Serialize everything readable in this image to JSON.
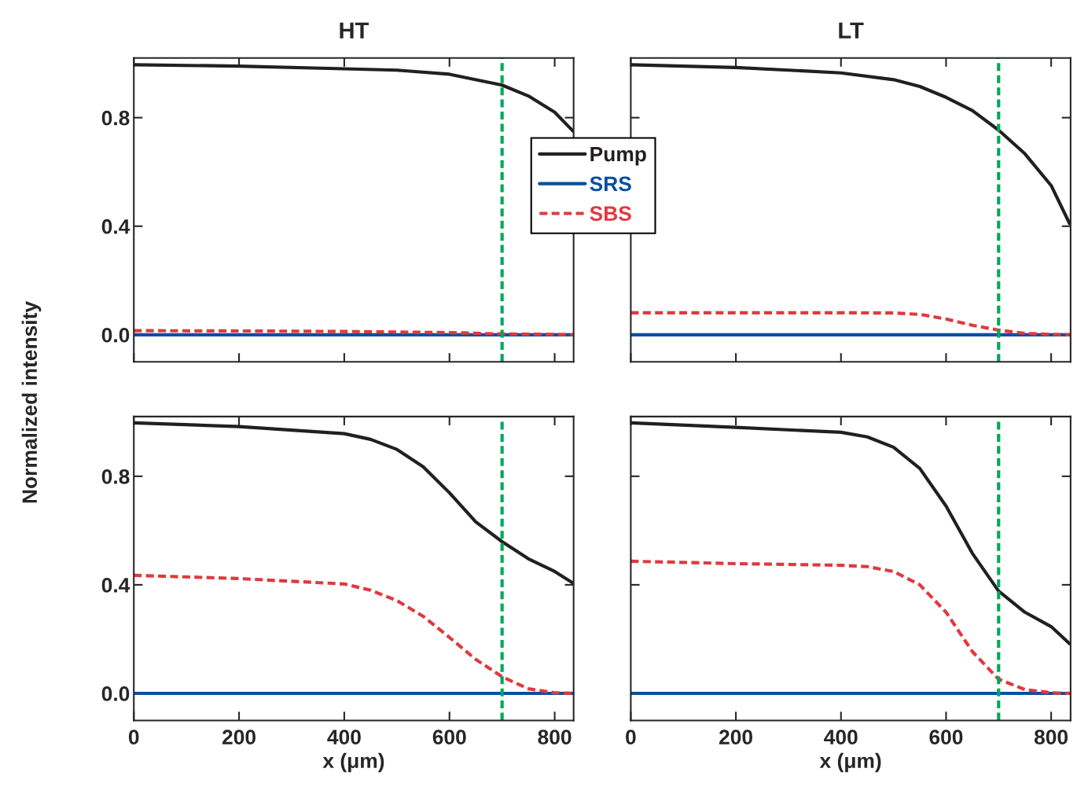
{
  "chart_data": [
    {
      "type": "line",
      "title": "HT",
      "ylabel": "Normalized intensity",
      "x": [
        0,
        200,
        400,
        500,
        600,
        700,
        750,
        800,
        835
      ],
      "xlim": [
        0,
        836
      ],
      "ylim": [
        -0.1,
        1.02
      ],
      "xticks": [
        0,
        200,
        400,
        600,
        800
      ],
      "yticks": [
        {
          "value": 0,
          "label": "0.0"
        },
        {
          "value": 0.4,
          "label": "0.4"
        },
        {
          "value": 0.8,
          "label": "0.8"
        }
      ],
      "tick_labels": "y",
      "legend": "right",
      "series": [
        {
          "name": "Pump",
          "color": "#231f20",
          "line_style": "solid",
          "values": [
            0.995,
            0.99,
            0.98,
            0.975,
            0.96,
            0.92,
            0.88,
            0.82,
            0.75
          ]
        },
        {
          "name": "SRS",
          "color": "#0a4fa0",
          "line_style": "solid",
          "values": [
            0,
            0,
            0,
            0,
            0,
            0,
            0,
            0,
            0
          ]
        },
        {
          "name": "SBS",
          "color": "#e0393e",
          "line_style": "dashed",
          "values": [
            0.015,
            0.014,
            0.012,
            0.01,
            0.008,
            0.003,
            0.002,
            0.001,
            0
          ]
        }
      ],
      "ref_lines": [
        {
          "axis": "x",
          "value": 700,
          "color": "#00a859",
          "line_style": "dashed"
        }
      ]
    },
    {
      "type": "line",
      "title": "LT",
      "x": [
        0,
        200,
        400,
        500,
        550,
        600,
        650,
        700,
        750,
        800,
        835
      ],
      "xlim": [
        0,
        837
      ],
      "ylim": [
        -0.1,
        1.02
      ],
      "xticks": [
        0,
        200,
        400,
        600,
        800
      ],
      "yticks": [
        {
          "value": 0,
          "label": null
        },
        {
          "value": 0.4,
          "label": null
        },
        {
          "value": 0.8,
          "label": null
        }
      ],
      "tick_labels": false,
      "series": [
        {
          "color": "#231f20",
          "line_style": "solid",
          "values": [
            0.995,
            0.985,
            0.965,
            0.94,
            0.915,
            0.875,
            0.826,
            0.754,
            0.667,
            0.55,
            0.41
          ]
        },
        {
          "color": "#0a4fa0",
          "line_style": "solid",
          "values": [
            0,
            0,
            0,
            0,
            0,
            0,
            0,
            0,
            0,
            0,
            0
          ]
        },
        {
          "color": "#e0393e",
          "line_style": "dashed",
          "values": [
            0.081,
            0.081,
            0.081,
            0.08,
            0.075,
            0.058,
            0.035,
            0.017,
            0.005,
            0.001,
            0
          ]
        }
      ],
      "ref_lines": [
        {
          "axis": "x",
          "value": 700,
          "color": "#00a859",
          "line_style": "dashed"
        }
      ]
    },
    {
      "type": "line",
      "xlabel": "x (μm)",
      "x": [
        0,
        200,
        400,
        450,
        500,
        550,
        600,
        650,
        700,
        750,
        800,
        835
      ],
      "xlim": [
        0,
        836
      ],
      "ylim": [
        -0.1,
        1.02
      ],
      "xticks": [
        0,
        200,
        400,
        600,
        800
      ],
      "yticks": [
        {
          "value": 0,
          "label": "0.0"
        },
        {
          "value": 0.4,
          "label": "0.4"
        },
        {
          "value": 0.8,
          "label": "0.8"
        }
      ],
      "series": [
        {
          "color": "#231f20",
          "line_style": "solid",
          "values": [
            0.997,
            0.983,
            0.957,
            0.936,
            0.899,
            0.835,
            0.739,
            0.632,
            0.559,
            0.496,
            0.449,
            0.406
          ]
        },
        {
          "color": "#0a4fa0",
          "line_style": "solid",
          "values": [
            0,
            0,
            0,
            0,
            0,
            0,
            0,
            0,
            0,
            0,
            0,
            0
          ]
        },
        {
          "color": "#e0393e",
          "line_style": "dashed",
          "values": [
            0.435,
            0.423,
            0.403,
            0.38,
            0.342,
            0.284,
            0.206,
            0.125,
            0.061,
            0.017,
            0.002,
            0
          ]
        }
      ],
      "ref_lines": [
        {
          "axis": "x",
          "value": 700,
          "color": "#00a859",
          "line_style": "dashed"
        }
      ]
    },
    {
      "type": "line",
      "xlabel": "x (μm)",
      "x": [
        0,
        200,
        400,
        450,
        500,
        550,
        600,
        650,
        700,
        750,
        800,
        835
      ],
      "xlim": [
        0,
        837
      ],
      "ylim": [
        -0.1,
        1.02
      ],
      "xticks": [
        0,
        200,
        400,
        600,
        800
      ],
      "yticks": [
        {
          "value": 0,
          "label": null
        },
        {
          "value": 0.4,
          "label": null
        },
        {
          "value": 0.8,
          "label": null
        }
      ],
      "tick_labels": "x",
      "series": [
        {
          "color": "#231f20",
          "line_style": "solid",
          "values": [
            0.997,
            0.98,
            0.962,
            0.945,
            0.907,
            0.829,
            0.69,
            0.516,
            0.377,
            0.299,
            0.246,
            0.183
          ]
        },
        {
          "color": "#0a4fa0",
          "line_style": "solid",
          "values": [
            0,
            0,
            0,
            0,
            0,
            0,
            0,
            0,
            0,
            0,
            0,
            0
          ]
        },
        {
          "color": "#e0393e",
          "line_style": "dashed",
          "values": [
            0.487,
            0.478,
            0.472,
            0.467,
            0.449,
            0.4,
            0.299,
            0.154,
            0.052,
            0.014,
            0.002,
            0
          ]
        }
      ],
      "ref_lines": [
        {
          "axis": "x",
          "value": 700,
          "color": "#00a859",
          "line_style": "dashed"
        }
      ]
    }
  ]
}
